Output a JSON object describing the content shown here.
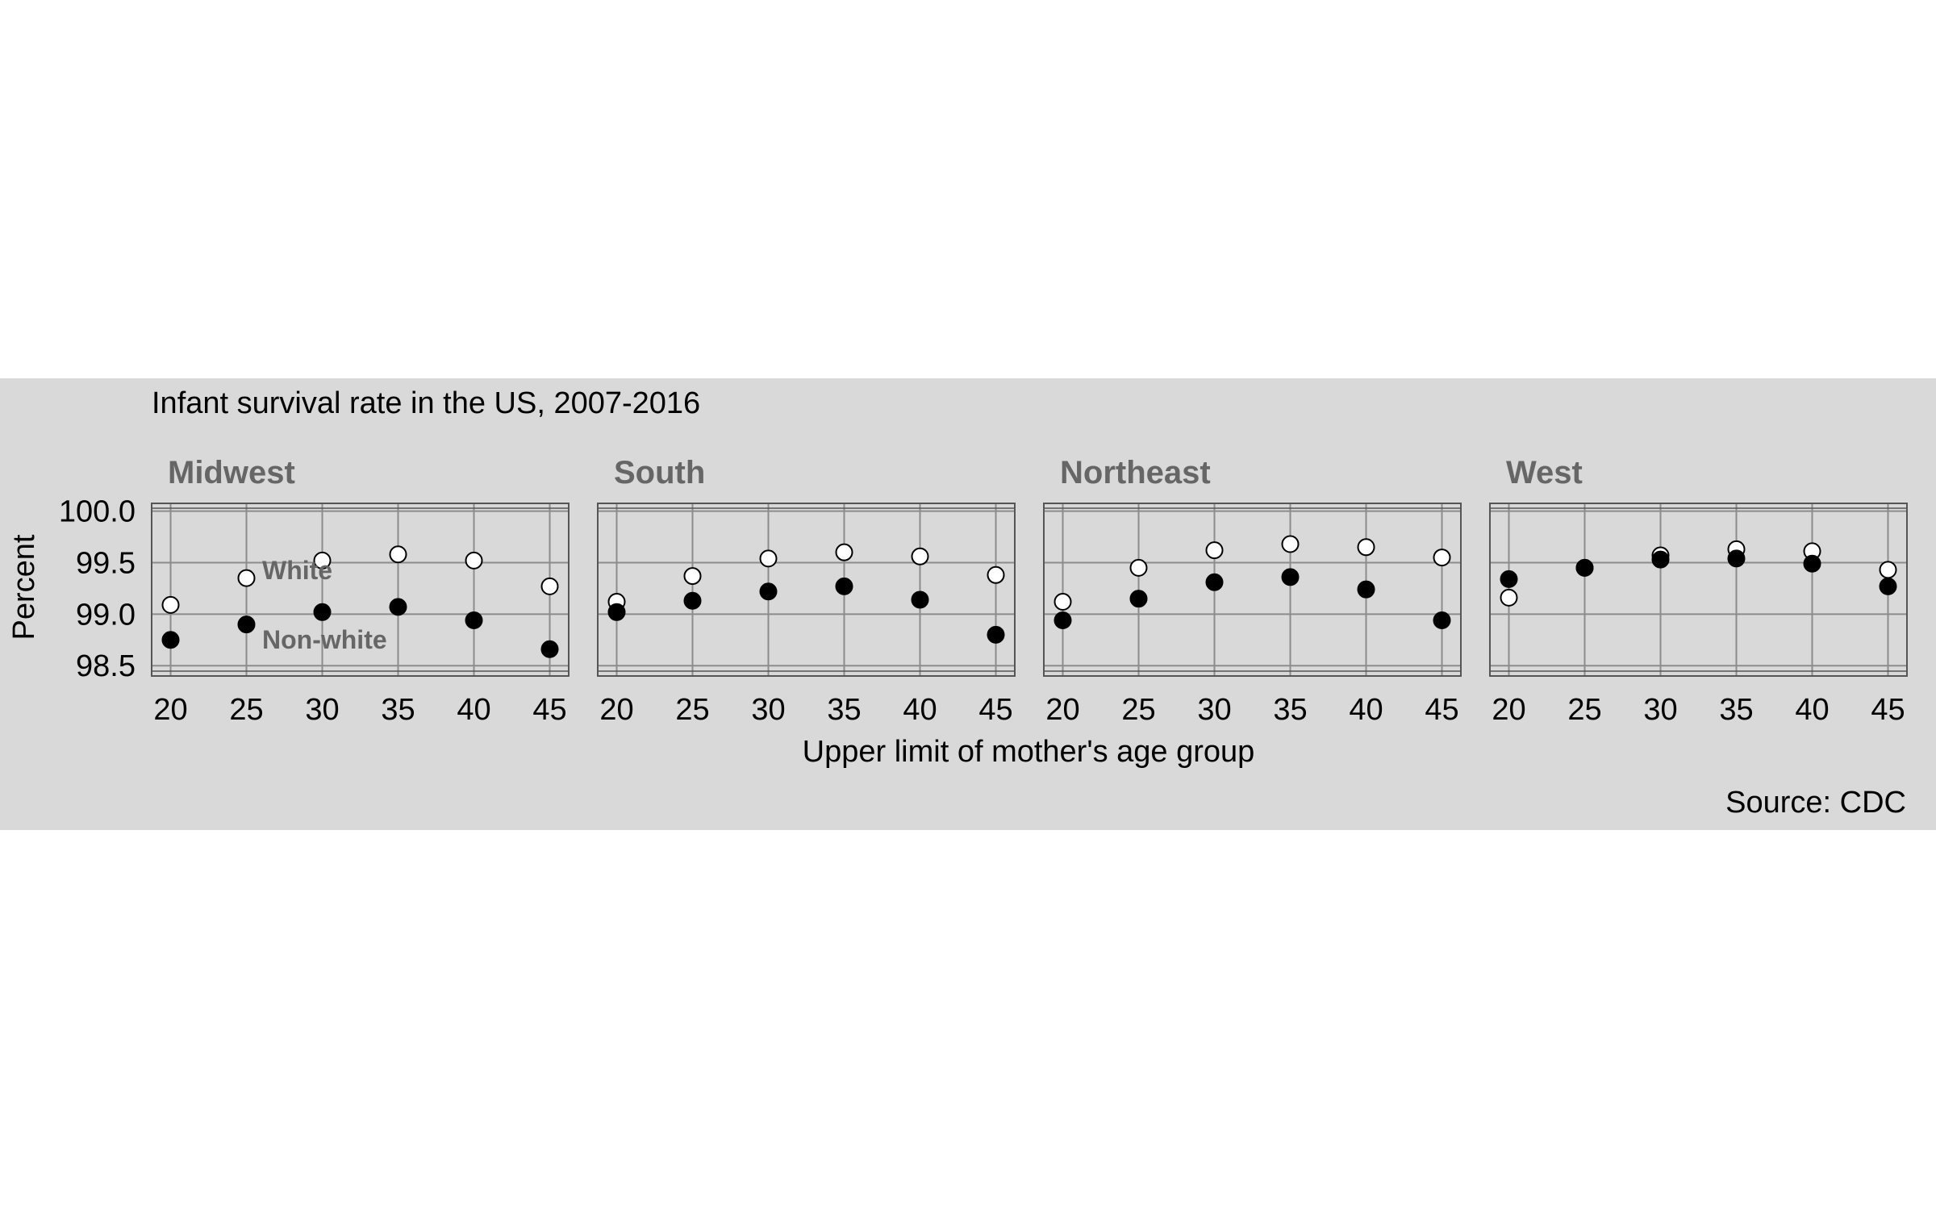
{
  "chart_data": {
    "type": "scatter",
    "title": "Infant survival rate in the US, 2007-2016",
    "xlabel": "Upper limit of mother's age group",
    "ylabel": "Percent",
    "caption": "Source: CDC",
    "ylim": [
      98.5,
      100.0
    ],
    "yticks": [
      "98.5",
      "99.0",
      "99.5",
      "100.0"
    ],
    "xticks": [
      "20",
      "25",
      "30",
      "35",
      "40",
      "45"
    ],
    "x": [
      20,
      25,
      30,
      35,
      40,
      45
    ],
    "grid": true,
    "legend": "inline labels in Midwest panel",
    "annotations": {
      "white": "White",
      "nonwhite": "Non-white"
    },
    "colors": {
      "background": "#d9d9d9",
      "panel": "#d9d9d9",
      "grid": "#8c8c8c",
      "strip_text": "#666666",
      "white_fill": "#ffffff",
      "nonwhite_fill": "#000000"
    },
    "panels": [
      {
        "name": "Midwest",
        "series": [
          {
            "name": "White",
            "values": [
              99.09,
              99.35,
              99.52,
              99.58,
              99.52,
              99.27
            ]
          },
          {
            "name": "Non-white",
            "values": [
              98.75,
              98.9,
              99.02,
              99.07,
              98.94,
              98.66
            ]
          }
        ]
      },
      {
        "name": "South",
        "series": [
          {
            "name": "White",
            "values": [
              99.12,
              99.37,
              99.54,
              99.6,
              99.56,
              99.38
            ]
          },
          {
            "name": "Non-white",
            "values": [
              99.02,
              99.13,
              99.22,
              99.27,
              99.14,
              98.8
            ]
          }
        ]
      },
      {
        "name": "Northeast",
        "series": [
          {
            "name": "White",
            "values": [
              99.12,
              99.45,
              99.62,
              99.68,
              99.65,
              99.55
            ]
          },
          {
            "name": "Non-white",
            "values": [
              98.94,
              99.15,
              99.31,
              99.36,
              99.24,
              98.94
            ]
          }
        ]
      },
      {
        "name": "West",
        "series": [
          {
            "name": "White",
            "values": [
              99.16,
              99.45,
              99.57,
              99.63,
              99.61,
              99.43
            ]
          },
          {
            "name": "Non-white",
            "values": [
              99.34,
              99.45,
              99.53,
              99.54,
              99.49,
              99.27
            ]
          }
        ]
      }
    ]
  }
}
